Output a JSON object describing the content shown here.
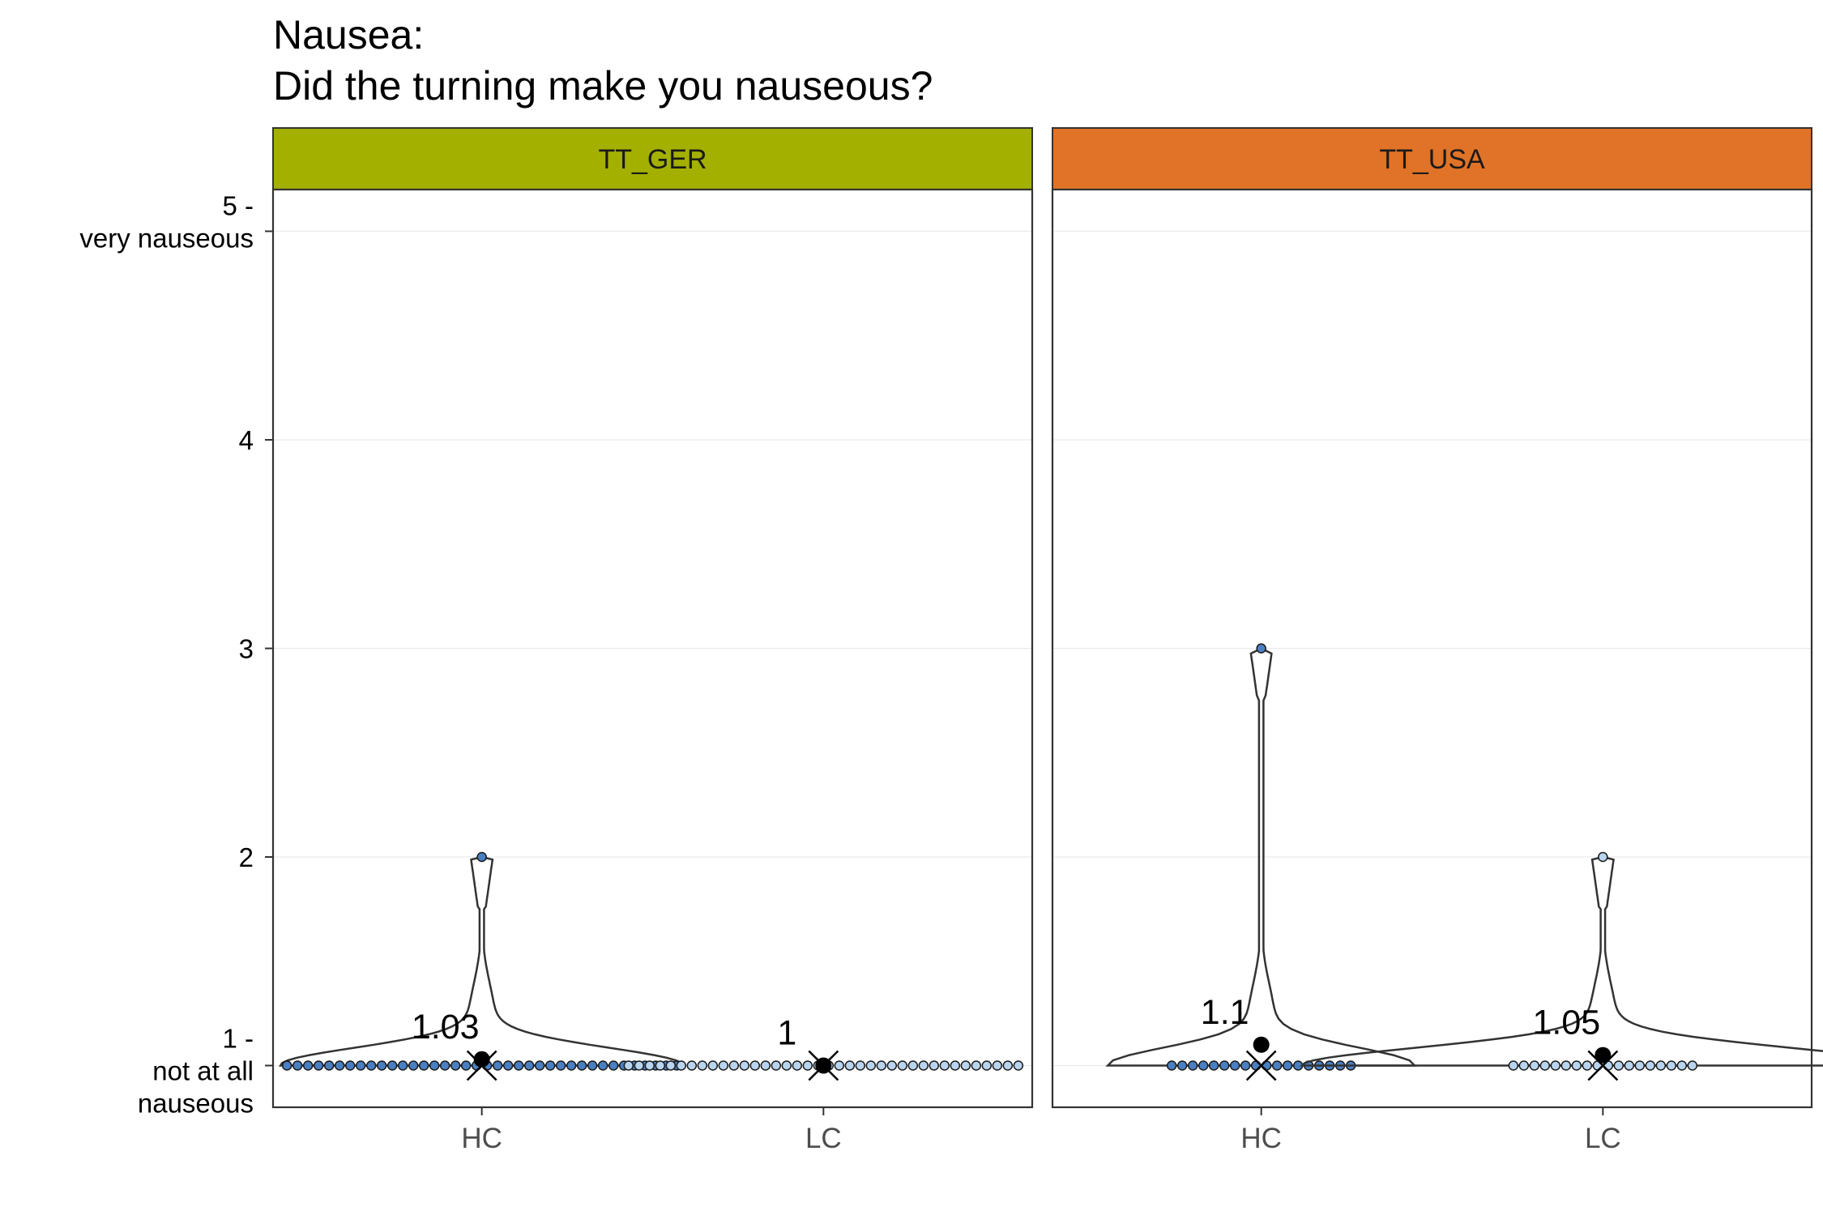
{
  "chart_data": {
    "type": "violin",
    "title": [
      "Nausea:",
      "Did the turning make you nauseous?"
    ],
    "ylim": [
      0.8,
      5.2
    ],
    "yticks": [
      {
        "value": 1,
        "lines": [
          "1 -",
          "not at all",
          "nauseous"
        ]
      },
      {
        "value": 2,
        "lines": [
          "2"
        ]
      },
      {
        "value": 3,
        "lines": [
          "3"
        ]
      },
      {
        "value": 4,
        "lines": [
          "4"
        ]
      },
      {
        "value": 5,
        "lines": [
          "5 -",
          "very nauseous"
        ]
      }
    ],
    "grid": true,
    "colors": {
      "HC": "#4a7fc1",
      "LC": "#b9d4ee",
      "TT_GER": "#a3b000",
      "TT_USA": "#e07327"
    },
    "panels": [
      {
        "name": "TT_GER",
        "groups": [
          {
            "category": "HC",
            "counts": {
              "1": 38,
              "2": 1
            },
            "mean": 1.03,
            "mean_label": "1.03",
            "median": 1,
            "max_density": 0.53
          },
          {
            "category": "LC",
            "counts": {
              "1": 38
            },
            "mean": 1.0,
            "mean_label": "1",
            "median": 1,
            "max_density": 0.0
          }
        ]
      },
      {
        "name": "TT_USA",
        "groups": [
          {
            "category": "HC",
            "counts": {
              "1": 18,
              "3": 1
            },
            "mean": 1.1,
            "mean_label": "1.1",
            "median": 1,
            "max_density": 0.4
          },
          {
            "category": "LC",
            "counts": {
              "1": 18,
              "2": 1
            },
            "mean": 1.05,
            "mean_label": "1.05",
            "median": 1,
            "max_density": 0.8
          }
        ]
      }
    ]
  }
}
